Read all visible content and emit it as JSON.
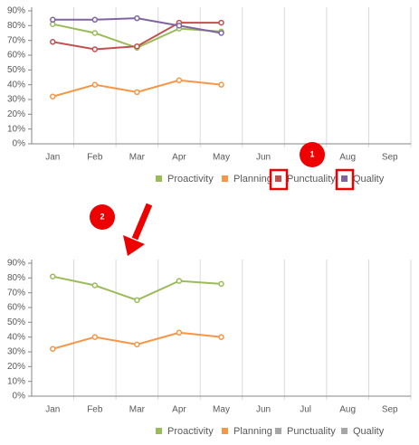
{
  "chart_data": [
    {
      "type": "line",
      "categories": [
        "Jan",
        "Feb",
        "Mar",
        "Apr",
        "May",
        "Jun",
        "Jul",
        "Aug",
        "Sep"
      ],
      "ylim": [
        0,
        90
      ],
      "yticks": [
        {
          "value": 0,
          "label": "0%"
        },
        {
          "value": 10,
          "label": "10%"
        },
        {
          "value": 20,
          "label": "20%"
        },
        {
          "value": 30,
          "label": "30%"
        },
        {
          "value": 40,
          "label": "40%"
        },
        {
          "value": 50,
          "label": "50%"
        },
        {
          "value": 60,
          "label": "60%"
        },
        {
          "value": 70,
          "label": "70%"
        },
        {
          "value": 80,
          "label": "80%"
        },
        {
          "value": 90,
          "label": "90%"
        }
      ],
      "series": [
        {
          "name": "Proactivity",
          "color": "#9bbb59",
          "values": [
            81,
            75,
            65,
            78,
            76,
            null,
            null,
            null,
            null
          ]
        },
        {
          "name": "Planning",
          "color": "#f79646",
          "values": [
            32,
            40,
            35,
            43,
            40,
            null,
            null,
            null,
            null
          ]
        },
        {
          "name": "Punctuality",
          "color": "#c0504d",
          "values": [
            69,
            64,
            66,
            82,
            82,
            null,
            null,
            null,
            null
          ]
        },
        {
          "name": "Quality",
          "color": "#8064a2",
          "values": [
            84,
            84,
            85,
            80,
            75,
            null,
            null,
            null,
            null
          ]
        }
      ]
    },
    {
      "type": "line",
      "categories": [
        "Jan",
        "Feb",
        "Mar",
        "Apr",
        "May",
        "Jun",
        "Jul",
        "Aug",
        "Sep"
      ],
      "ylim": [
        0,
        90
      ],
      "yticks": [
        {
          "value": 0,
          "label": "0%"
        },
        {
          "value": 10,
          "label": "10%"
        },
        {
          "value": 20,
          "label": "20%"
        },
        {
          "value": 30,
          "label": "30%"
        },
        {
          "value": 40,
          "label": "40%"
        },
        {
          "value": 50,
          "label": "50%"
        },
        {
          "value": 60,
          "label": "60%"
        },
        {
          "value": 70,
          "label": "70%"
        },
        {
          "value": 80,
          "label": "80%"
        },
        {
          "value": 90,
          "label": "90%"
        }
      ],
      "series": [
        {
          "name": "Proactivity",
          "color": "#9bbb59",
          "values": [
            81,
            75,
            65,
            78,
            76,
            null,
            null,
            null,
            null
          ]
        },
        {
          "name": "Planning",
          "color": "#f79646",
          "values": [
            32,
            40,
            35,
            43,
            40,
            null,
            null,
            null,
            null
          ]
        },
        {
          "name": "Punctuality",
          "color": "#a6a6a6",
          "hidden": true
        },
        {
          "name": "Quality",
          "color": "#a6a6a6",
          "hidden": true
        }
      ]
    }
  ],
  "annotations": [
    {
      "label": "1"
    },
    {
      "label": "2"
    }
  ]
}
